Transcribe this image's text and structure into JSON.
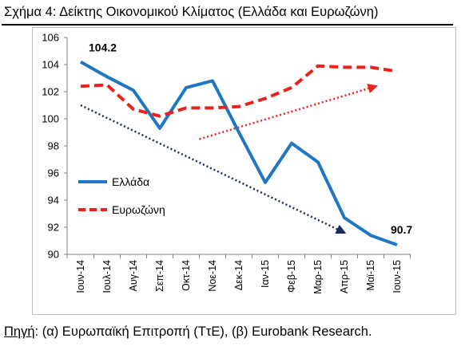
{
  "title": "Σχήμα 4: Δείκτης Οικονομικού Κλίματος (Ελλάδα και Ευρωζώνη)",
  "source": {
    "label": "Πηγή",
    "text": ": (α) Ευρωπαϊκή Επιτροπή (ΤτΕ), (β) Eurobank Research."
  },
  "colors": {
    "greece": "#1f77c4",
    "eurozone": "#e8231c",
    "greece_trend": "#1a2a5e",
    "eurozone_trend": "#e8231c",
    "axis": "#808080"
  },
  "chart_data": {
    "type": "line",
    "title": "",
    "xlabel": "",
    "ylabel": "",
    "ylim": [
      90,
      106
    ],
    "yticks": [
      90,
      92,
      94,
      96,
      98,
      100,
      102,
      104,
      106
    ],
    "grid": false,
    "legend_position": "left",
    "categories": [
      "Ιουν-14",
      "Ιουλ-14",
      "Αυγ-14",
      "Σεπ-14",
      "Οκτ-14",
      "Νοε-14",
      "Δεκ-14",
      "Ιαν-15",
      "Φεβ-15",
      "Μαρ-15",
      "Απρ-15",
      "Μαϊ-15",
      "Ιουν-15"
    ],
    "series": [
      {
        "name": "Ελλάδα",
        "style": "solid",
        "values": [
          104.2,
          103.1,
          102.1,
          99.3,
          102.3,
          102.8,
          99.0,
          95.3,
          98.2,
          96.8,
          92.7,
          91.4,
          90.7
        ]
      },
      {
        "name": "Ευρωζώνη",
        "style": "dashed",
        "values": [
          102.4,
          102.5,
          100.7,
          100.2,
          100.8,
          100.8,
          100.9,
          101.5,
          102.3,
          103.9,
          103.8,
          103.8,
          103.5
        ]
      }
    ],
    "trends": [
      {
        "series": "Ελλάδα",
        "style": "dotted",
        "from": [
          0,
          101.0
        ],
        "to": [
          10,
          91.6
        ]
      },
      {
        "series": "Ευρωζώνη",
        "style": "dotted",
        "from": [
          4.5,
          98.5
        ],
        "to": [
          11.2,
          102.4
        ]
      }
    ],
    "annotations": [
      {
        "text": "104.2",
        "x": 0,
        "y": 104.2
      },
      {
        "text": "90.7",
        "x": 12,
        "y": 90.7
      }
    ]
  }
}
